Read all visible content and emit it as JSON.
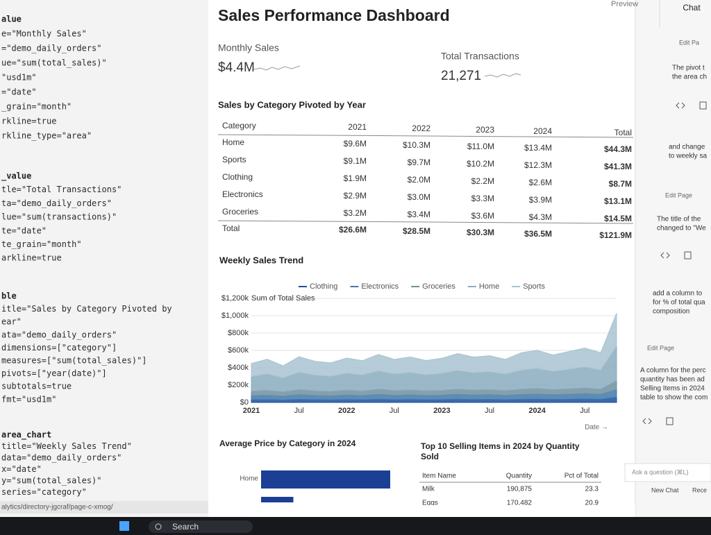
{
  "editor": {
    "blocks": [
      [
        "alue",
        "e=\"Monthly Sales\"",
        "=\"demo_daily_orders\"",
        "ue=\"sum(total_sales)\"",
        "\"usd1m\"",
        "=\"date\"",
        "_grain=\"month\"",
        "rkline=true",
        "rkline_type=\"area\""
      ],
      [
        "_value",
        "tle=\"Total Transactions\"",
        "ta=\"demo_daily_orders\"",
        "lue=\"sum(transactions)\"",
        "te=\"date\"",
        "te_grain=\"month\"",
        "arkline=true"
      ],
      [
        "ble",
        "itle=\"Sales by Category Pivoted by",
        "ear\"",
        "ata=\"demo_daily_orders\"",
        "dimensions=[\"category\"]",
        "measures=[\"sum(total_sales)\"]",
        "pivots=[\"year(date)\"]",
        "subtotals=true",
        "fmt=\"usd1m\""
      ],
      [
        "area_chart",
        "  title=\"Weekly Sales Trend\"",
        "  data=\"demo_daily_orders\"",
        "  x=\"date\"",
        "  y=\"sum(total_sales)\"",
        "  series=\"category\""
      ]
    ],
    "path": "alytics/directory-jgcraf/page-c-xmog/"
  },
  "header": {
    "title": "Sales Performance Dashboard",
    "preview": "Preview"
  },
  "kpis": [
    {
      "label": "Monthly Sales",
      "value": "$4.4M"
    },
    {
      "label": "Total Transactions",
      "value": "21,271"
    }
  ],
  "pivot": {
    "title": "Sales by Category Pivoted by Year",
    "columns": [
      "Category",
      "2021",
      "2022",
      "2023",
      "2024",
      "Total"
    ],
    "rows": [
      [
        "Home",
        "$9.6M",
        "$10.3M",
        "$11.0M",
        "$13.4M",
        "$44.3M"
      ],
      [
        "Sports",
        "$9.1M",
        "$9.7M",
        "$10.2M",
        "$12.3M",
        "$41.3M"
      ],
      [
        "Clothing",
        "$1.9M",
        "$2.0M",
        "$2.2M",
        "$2.6M",
        "$8.7M"
      ],
      [
        "Electronics",
        "$2.9M",
        "$3.0M",
        "$3.3M",
        "$3.9M",
        "$13.1M"
      ],
      [
        "Groceries",
        "$3.2M",
        "$3.4M",
        "$3.6M",
        "$4.3M",
        "$14.5M"
      ]
    ],
    "total": [
      "Total",
      "$26.6M",
      "$28.5M",
      "$30.3M",
      "$36.5M",
      "$121.9M"
    ]
  },
  "chart_data": [
    {
      "type": "area",
      "title": "Weekly Sales Trend",
      "y_label": "Sum of Total Sales",
      "x_label": "Date →",
      "categories": [
        "2021",
        null,
        null,
        "Jul",
        null,
        null,
        "2022",
        null,
        null,
        "Jul",
        null,
        null,
        "2023",
        null,
        null,
        "Jul",
        null,
        null,
        "2024",
        null,
        null,
        "Jul",
        null,
        null
      ],
      "series": [
        {
          "name": "Clothing",
          "color": "#1d4f9a",
          "values": [
            30000,
            32000,
            28000,
            35000,
            31000,
            29000,
            33000,
            30000,
            36000,
            31000,
            34000,
            30000,
            32000,
            37000,
            33000,
            35000,
            31000,
            36000,
            38000,
            34000,
            37000,
            40000,
            36000,
            60000
          ]
        },
        {
          "name": "Electronics",
          "color": "#3f78ad",
          "values": [
            48000,
            52000,
            45000,
            55000,
            50000,
            47000,
            53000,
            49000,
            58000,
            51000,
            54000,
            50000,
            52000,
            57000,
            53000,
            55000,
            51000,
            56000,
            60000,
            55000,
            58000,
            62000,
            57000,
            90000
          ]
        },
        {
          "name": "Groceries",
          "color": "#6f8f9f",
          "values": [
            52000,
            55000,
            50000,
            58000,
            54000,
            51000,
            56000,
            53000,
            60000,
            55000,
            57000,
            54000,
            56000,
            60000,
            57000,
            59000,
            55000,
            61000,
            64000,
            59000,
            62000,
            66000,
            61000,
            100000
          ]
        },
        {
          "name": "Home",
          "color": "#8aabbf",
          "values": [
            170000,
            190000,
            160000,
            200000,
            180000,
            175000,
            195000,
            185000,
            210000,
            190000,
            200000,
            185000,
            195000,
            215000,
            200000,
            205000,
            190000,
            220000,
            230000,
            210000,
            225000,
            240000,
            220000,
            400000
          ]
        },
        {
          "name": "Sports",
          "color": "#a9c3d1",
          "values": [
            150000,
            170000,
            140000,
            180000,
            160000,
            155000,
            175000,
            165000,
            190000,
            170000,
            180000,
            165000,
            175000,
            195000,
            180000,
            185000,
            170000,
            200000,
            210000,
            190000,
            205000,
            220000,
            200000,
            380000
          ]
        }
      ],
      "stacked": true,
      "ylim": [
        0,
        1200000
      ],
      "yticks": [
        {
          "value": 0,
          "label": "$0"
        },
        {
          "value": 200000,
          "label": "$200k"
        },
        {
          "value": 400000,
          "label": "$400k"
        },
        {
          "value": 600000,
          "label": "$600k"
        },
        {
          "value": 800000,
          "label": "$800k"
        },
        {
          "value": 1000000,
          "label": "$1,000k"
        },
        {
          "value": 1200000,
          "label": "$1,200k"
        }
      ],
      "grid": true,
      "legend": "top"
    },
    {
      "type": "hbar",
      "title": "Average Price by Category in 2024",
      "categories": [
        "Home",
        null
      ],
      "values": [
        100,
        25
      ],
      "color": "#1a3f94"
    }
  ],
  "top_items": {
    "title": [
      "Top 10 Selling Items in 2024 by Quantity",
      "Sold"
    ],
    "columns": [
      "Item Name",
      "Quantity",
      "Pct of Total"
    ],
    "rows": [
      [
        "Milk",
        "190,875",
        "23.3"
      ],
      [
        "Eggs",
        "170,482",
        "20.9"
      ]
    ]
  },
  "chat": {
    "tab": "Chat",
    "edits": [
      "Edit Pa",
      "Edit Page",
      "Edit Page"
    ],
    "messages": [
      [
        "The pivot t",
        "the area ch"
      ],
      [
        "and change",
        "to weekly sa"
      ],
      [
        "The title of the",
        "changed to \"We"
      ],
      [
        "add a column to",
        "for % of total qua",
        "composition"
      ],
      [
        "A column for the perc",
        "quantity has been ad",
        "Selling Items in 2024",
        "table to show the com"
      ]
    ],
    "input": "Ask a question (⌘L)",
    "buttons": [
      "New Chat",
      "Rece"
    ]
  },
  "taskbar": {
    "search": "Search"
  }
}
